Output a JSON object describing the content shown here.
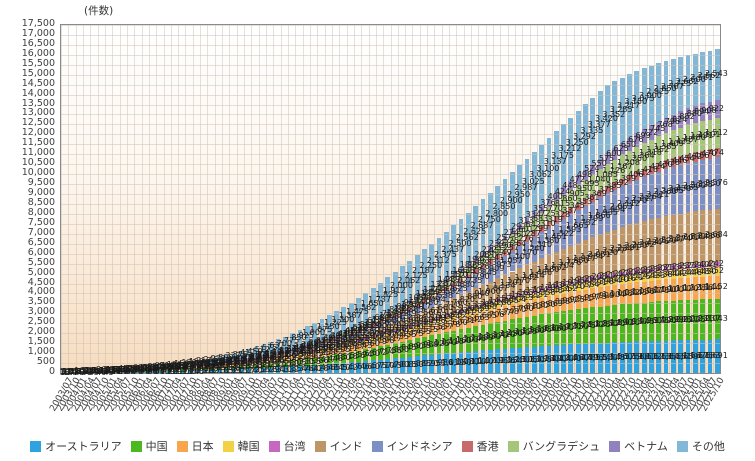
{
  "y_axis": {
    "title": "(件数)"
  },
  "chart_data": {
    "type": "bar",
    "stacked": true,
    "title": "",
    "xlabel": "",
    "ylabel": "(件数)",
    "ylim": [
      0,
      17500
    ],
    "y_step": 500,
    "grid": true,
    "legend_position": "bottom",
    "x_tick_rotation": -60,
    "background_gradient": [
      "#ffffff",
      "#f6dcc0"
    ],
    "categories": [
      "2003/07",
      "2003/10",
      "2004/01",
      "2004/04",
      "2004/07",
      "2004/10",
      "2005/01",
      "2005/04",
      "2005/07",
      "2005/10",
      "2006/01",
      "2006/04",
      "2006/07",
      "2006/10",
      "2007/01",
      "2007/04",
      "2007/07",
      "2007/10",
      "2008/01",
      "2008/04",
      "2008/07",
      "2008/10",
      "2009/01",
      "2009/04",
      "2009/07",
      "2009/10",
      "2010/01",
      "2010/04",
      "2010/07",
      "2010/10",
      "2011/01",
      "2011/04",
      "2011/07",
      "2011/10",
      "2012/01",
      "2012/04",
      "2012/07",
      "2012/10",
      "2013/01",
      "2013/04",
      "2013/07",
      "2013/10",
      "2014/01",
      "2014/04",
      "2014/07",
      "2014/10",
      "2015/01",
      "2015/04",
      "2015/07",
      "2015/10",
      "2016/01",
      "2016/04",
      "2016/07",
      "2016/10",
      "2017/01",
      "2017/04",
      "2017/07",
      "2017/10",
      "2018/01",
      "2018/04",
      "2018/07",
      "2018/10",
      "2019/01",
      "2019/04",
      "2019/07",
      "2019/10",
      "2020/01",
      "2020/04",
      "2020/07",
      "2020/10",
      "2021/01",
      "2021/04",
      "2021/07",
      "2021/10",
      "2022/01",
      "2022/04",
      "2022/07",
      "2022/10",
      "2023/01",
      "2023/04",
      "2023/07",
      "2023/10",
      "2024/01",
      "2024/04",
      "2024/07",
      "2024/10",
      "2025/01",
      "2025/04",
      "2025/07",
      "2025/10"
    ],
    "series": [
      {
        "name": "オーストラリア",
        "color": "#2EA3DF",
        "values": [
          15,
          20,
          25,
          30,
          35,
          40,
          45,
          51,
          57,
          63,
          70,
          78,
          86,
          94,
          100,
          110,
          120,
          130,
          140,
          151,
          162,
          173,
          185,
          199,
          213,
          227,
          240,
          258,
          276,
          294,
          310,
          332,
          354,
          376,
          400,
          428,
          456,
          484,
          510,
          542,
          574,
          606,
          640,
          675,
          710,
          745,
          780,
          815,
          850,
          885,
          920,
          953,
          986,
          1019,
          1050,
          1080,
          1110,
          1140,
          1170,
          1198,
          1226,
          1254,
          1280,
          1305,
          1330,
          1355,
          1380,
          1400,
          1420,
          1440,
          1460,
          1478,
          1496,
          1514,
          1530,
          1545,
          1560,
          1575,
          1590,
          1601,
          1612,
          1623,
          1635,
          1643,
          1651,
          1659,
          1667,
          1675,
          1683,
          1691
        ]
      },
      {
        "name": "中国",
        "color": "#4CB81F",
        "values": [
          5,
          7,
          10,
          12,
          14,
          16,
          20,
          24,
          28,
          32,
          35,
          40,
          45,
          50,
          55,
          62,
          69,
          76,
          85,
          95,
          105,
          115,
          125,
          139,
          153,
          167,
          180,
          199,
          218,
          237,
          255,
          280,
          305,
          330,
          355,
          386,
          417,
          448,
          480,
          518,
          556,
          594,
          630,
          672,
          714,
          756,
          800,
          845,
          890,
          935,
          980,
          1025,
          1070,
          1115,
          1160,
          1203,
          1246,
          1289,
          1330,
          1370,
          1410,
          1450,
          1490,
          1525,
          1560,
          1595,
          1630,
          1660,
          1690,
          1720,
          1750,
          1775,
          1800,
          1825,
          1850,
          1870,
          1890,
          1910,
          1930,
          1945,
          1960,
          1975,
          1990,
          1999,
          2008,
          2017,
          2025,
          2031,
          2037,
          2043
        ]
      },
      {
        "name": "日本",
        "color": "#F7A64E",
        "values": [
          10,
          14,
          20,
          24,
          28,
          32,
          35,
          39,
          43,
          47,
          52,
          57,
          62,
          67,
          72,
          78,
          84,
          90,
          96,
          103,
          110,
          117,
          124,
          132,
          140,
          148,
          156,
          166,
          176,
          186,
          195,
          206,
          217,
          228,
          240,
          254,
          268,
          282,
          295,
          311,
          327,
          343,
          360,
          379,
          398,
          417,
          435,
          455,
          475,
          495,
          515,
          536,
          557,
          578,
          600,
          621,
          642,
          663,
          685,
          706,
          727,
          748,
          770,
          790,
          810,
          830,
          850,
          869,
          888,
          907,
          925,
          941,
          957,
          973,
          990,
          1004,
          1018,
          1032,
          1045,
          1056,
          1067,
          1078,
          1090,
          1100,
          1110,
          1120,
          1128,
          1136,
          1144,
          1152
        ]
      },
      {
        "name": "韓国",
        "color": "#F2D244",
        "values": [
          2,
          3,
          5,
          6,
          7,
          8,
          9,
          10,
          11,
          12,
          14,
          15,
          16,
          18,
          20,
          22,
          24,
          26,
          28,
          30,
          32,
          35,
          38,
          41,
          44,
          47,
          50,
          54,
          58,
          62,
          65,
          70,
          75,
          80,
          84,
          90,
          96,
          102,
          107,
          114,
          121,
          128,
          134,
          142,
          150,
          158,
          164,
          172,
          180,
          188,
          197,
          206,
          215,
          224,
          232,
          241,
          250,
          259,
          268,
          277,
          286,
          295,
          304,
          313,
          322,
          331,
          338,
          346,
          354,
          362,
          370,
          377,
          384,
          391,
          398,
          404,
          410,
          416,
          421,
          425,
          429,
          433,
          438,
          440,
          442,
          444,
          446,
          448,
          450,
          452
        ]
      },
      {
        "name": "台湾",
        "color": "#C668C0",
        "values": [
          1,
          2,
          3,
          3,
          4,
          4,
          5,
          6,
          6,
          7,
          8,
          9,
          9,
          10,
          11,
          12,
          13,
          14,
          15,
          16,
          17,
          19,
          20,
          21,
          23,
          24,
          26,
          28,
          30,
          32,
          34,
          36,
          39,
          41,
          44,
          47,
          50,
          53,
          56,
          59,
          63,
          66,
          70,
          74,
          78,
          82,
          86,
          90,
          95,
          99,
          104,
          109,
          114,
          119,
          123,
          128,
          133,
          138,
          142,
          147,
          152,
          157,
          161,
          165,
          170,
          174,
          179,
          183,
          187,
          191,
          196,
          200,
          204,
          208,
          211,
          214,
          217,
          220,
          224,
          226,
          228,
          230,
          231,
          233,
          235,
          237,
          239,
          240,
          241,
          242
        ]
      },
      {
        "name": "インド",
        "color": "#BD9566",
        "values": [
          1,
          1,
          2,
          2,
          3,
          3,
          4,
          5,
          6,
          7,
          8,
          9,
          11,
          12,
          14,
          16,
          19,
          21,
          24,
          28,
          32,
          36,
          40,
          45,
          51,
          56,
          62,
          69,
          77,
          84,
          92,
          103,
          114,
          125,
          135,
          150,
          165,
          180,
          195,
          216,
          237,
          258,
          280,
          310,
          340,
          370,
          400,
          440,
          480,
          520,
          560,
          610,
          660,
          710,
          760,
          820,
          880,
          940,
          1000,
          1067,
          1134,
          1201,
          1270,
          1342,
          1414,
          1486,
          1560,
          1632,
          1704,
          1776,
          1850,
          1917,
          1984,
          2051,
          2120,
          2177,
          2234,
          2291,
          2350,
          2392,
          2434,
          2476,
          2520,
          2547,
          2574,
          2601,
          2630,
          2648,
          2666,
          2684
        ]
      },
      {
        "name": "インドネシア",
        "color": "#7D90C6",
        "values": [
          0,
          1,
          1,
          1,
          1,
          2,
          2,
          2,
          3,
          3,
          4,
          5,
          6,
          7,
          8,
          9,
          11,
          12,
          14,
          16,
          19,
          21,
          24,
          28,
          32,
          36,
          40,
          46,
          52,
          58,
          64,
          72,
          81,
          89,
          98,
          110,
          122,
          134,
          146,
          163,
          180,
          197,
          215,
          240,
          265,
          290,
          315,
          349,
          383,
          417,
          450,
          494,
          538,
          582,
          625,
          680,
          735,
          790,
          845,
          909,
          973,
          1037,
          1100,
          1170,
          1240,
          1310,
          1380,
          1451,
          1522,
          1593,
          1665,
          1732,
          1799,
          1866,
          1935,
          1994,
          2053,
          2112,
          2170,
          2217,
          2264,
          2311,
          2360,
          2395,
          2430,
          2465,
          2500,
          2525,
          2550,
          2576
        ]
      },
      {
        "name": "香港",
        "color": "#C66A6B",
        "values": [
          3,
          4,
          6,
          7,
          8,
          9,
          10,
          11,
          12,
          13,
          15,
          16,
          18,
          19,
          21,
          23,
          25,
          27,
          29,
          31,
          33,
          36,
          38,
          41,
          44,
          47,
          49,
          52,
          55,
          59,
          62,
          66,
          70,
          74,
          78,
          83,
          88,
          93,
          97,
          102,
          108,
          113,
          119,
          125,
          131,
          138,
          144,
          151,
          158,
          165,
          172,
          179,
          187,
          194,
          202,
          210,
          218,
          226,
          233,
          241,
          249,
          257,
          264,
          276,
          287,
          299,
          310,
          319,
          328,
          337,
          345,
          353,
          361,
          369,
          378,
          385,
          392,
          399,
          406,
          412,
          418,
          424,
          430,
          438,
          446,
          454,
          462,
          466,
          470,
          474
        ]
      },
      {
        "name": "バングラデシュ",
        "color": "#A4C67B",
        "values": [
          0,
          0,
          0,
          0,
          1,
          1,
          1,
          1,
          2,
          2,
          2,
          3,
          3,
          4,
          4,
          5,
          6,
          6,
          7,
          8,
          10,
          11,
          12,
          14,
          16,
          18,
          20,
          23,
          26,
          29,
          32,
          37,
          41,
          46,
          50,
          57,
          63,
          70,
          76,
          85,
          94,
          103,
          112,
          124,
          136,
          148,
          160,
          176,
          192,
          208,
          224,
          246,
          267,
          289,
          310,
          338,
          365,
          393,
          420,
          455,
          490,
          525,
          560,
          601,
          642,
          683,
          725,
          770,
          815,
          860,
          905,
          950,
          995,
          1040,
          1085,
          1126,
          1167,
          1208,
          1250,
          1284,
          1318,
          1352,
          1385,
          1409,
          1433,
          1457,
          1480,
          1491,
          1501,
          1512
        ]
      },
      {
        "name": "ベトナム",
        "color": "#9182BF",
        "values": [
          0,
          0,
          0,
          0,
          0,
          1,
          1,
          1,
          1,
          1,
          1,
          1,
          2,
          2,
          2,
          2,
          3,
          3,
          4,
          5,
          5,
          6,
          7,
          8,
          9,
          11,
          12,
          14,
          15,
          17,
          19,
          21,
          24,
          26,
          29,
          32,
          36,
          39,
          43,
          48,
          53,
          58,
          62,
          68,
          75,
          81,
          88,
          96,
          105,
          113,
          122,
          133,
          144,
          155,
          166,
          180,
          194,
          208,
          222,
          239,
          257,
          274,
          292,
          313,
          334,
          355,
          376,
          400,
          424,
          448,
          472,
          498,
          524,
          550,
          575,
          600,
          625,
          650,
          676,
          699,
          722,
          745,
          768,
          796,
          824,
          852,
          880,
          894,
          908,
          922
        ]
      },
      {
        "name": "その他",
        "color": "#82B7D8",
        "values": [
          10,
          13,
          16,
          19,
          23,
          26,
          30,
          37,
          45,
          52,
          60,
          72,
          85,
          97,
          110,
          130,
          150,
          170,
          190,
          217,
          245,
          272,
          300,
          337,
          375,
          412,
          450,
          512,
          575,
          637,
          700,
          775,
          850,
          925,
          1000,
          1075,
          1150,
          1225,
          1300,
          1387,
          1475,
          1562,
          1650,
          1737,
          1825,
          1912,
          2000,
          2062,
          2125,
          2187,
          2250,
          2312,
          2375,
          2437,
          2500,
          2562,
          2625,
          2687,
          2750,
          2800,
          2850,
          2900,
          2950,
          2987,
          3025,
          3062,
          3100,
          3137,
          3175,
          3212,
          3250,
          3292,
          3335,
          3377,
          3420,
          3352,
          3285,
          3217,
          3150,
          3075,
          3000,
          2925,
          2850,
          2787,
          2725,
          2662,
          2600,
          2581,
          2562,
          2543
        ]
      }
    ]
  }
}
